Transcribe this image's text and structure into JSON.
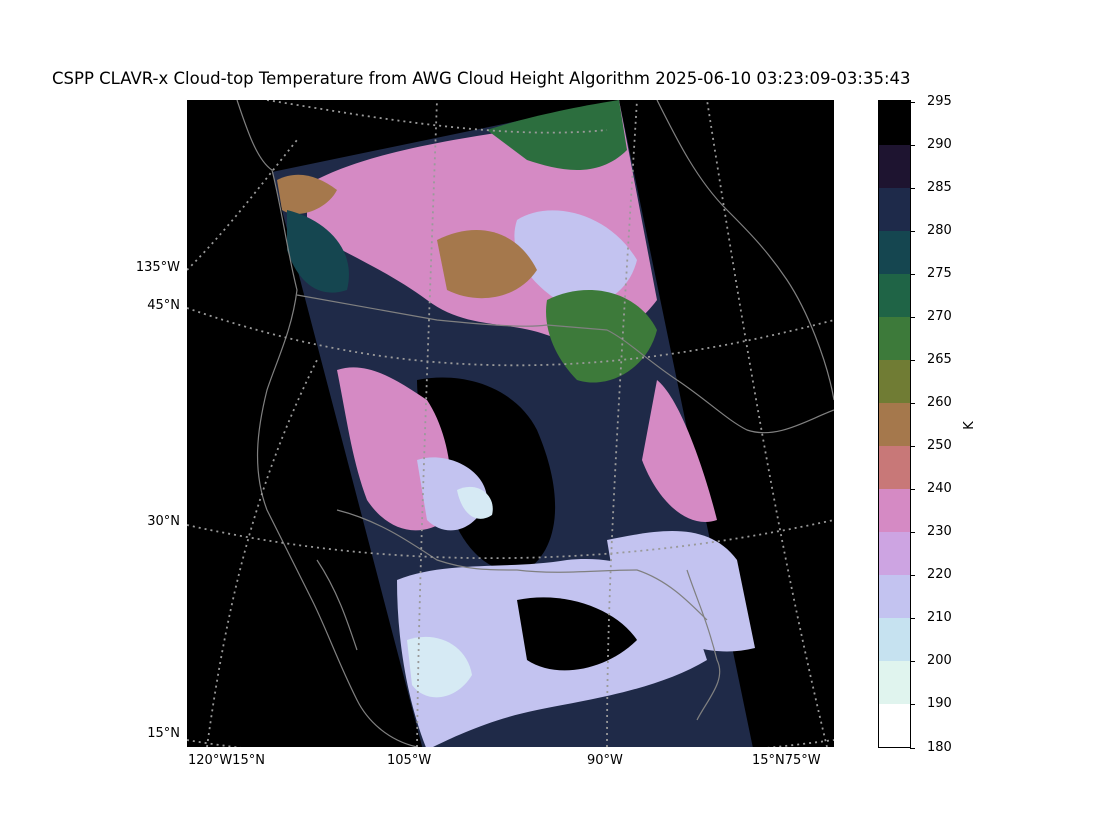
{
  "title": "CSPP CLAVR-x Cloud-top Temperature from AWG Cloud Height Algorithm 2025-06-10 03:23:09-03:35:43",
  "map": {
    "type": "satellite swath (Lambert conformal)",
    "background": "#000000",
    "coastline_color": "#808080",
    "graticule_color": "#9a9a9a",
    "lat_labels": [
      {
        "text": "135°W"
      },
      {
        "text": "45°N"
      },
      {
        "text": "30°N"
      },
      {
        "text": "15°N"
      }
    ],
    "lon_labels": [
      {
        "text": "120°W15°N"
      },
      {
        "text": "105°W"
      },
      {
        "text": "90°W"
      },
      {
        "text": "15°N75°W"
      }
    ]
  },
  "colorbar": {
    "unit": "K",
    "min": 180,
    "max": 295,
    "ticks": [
      "295",
      "290",
      "285",
      "280",
      "275",
      "270",
      "265",
      "260",
      "250",
      "240",
      "230",
      "220",
      "210",
      "200",
      "190",
      "180"
    ],
    "colors_bottom_to_top": [
      "#ffffff",
      "#e0f4ee",
      "#c6e2f0",
      "#c3c3f0",
      "#cda4e2",
      "#d58ac4",
      "#c87878",
      "#a5784c",
      "#707c34",
      "#3d7a3a",
      "#1f6446",
      "#154650",
      "#1e2a4a",
      "#1e1430",
      "#000000"
    ]
  }
}
